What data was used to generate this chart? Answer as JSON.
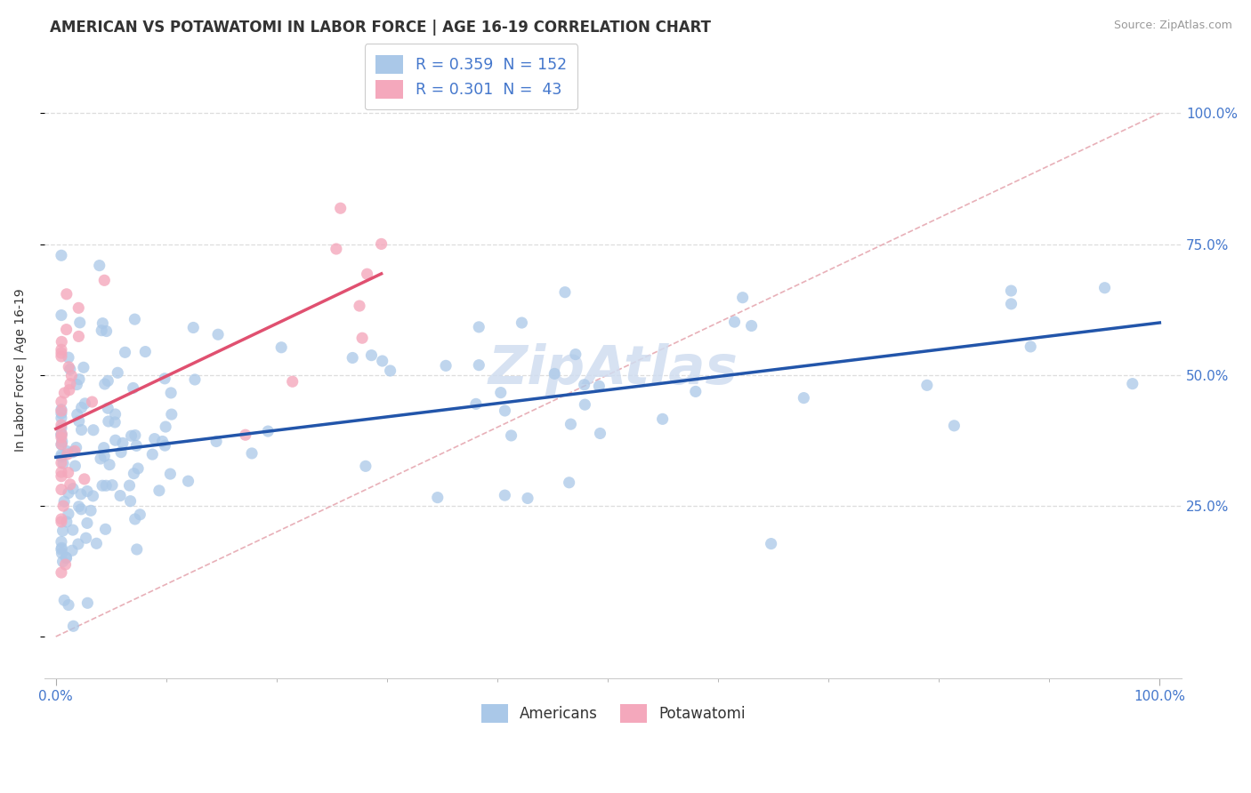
{
  "title": "AMERICAN VS POTAWATOMI IN LABOR FORCE | AGE 16-19 CORRELATION CHART",
  "source": "Source: ZipAtlas.com",
  "ylabel": "In Labor Force | Age 16-19",
  "americans_color": "#aac8e8",
  "potawatomi_color": "#f4a8bc",
  "americans_line_color": "#2255aa",
  "potawatomi_line_color": "#e05070",
  "diagonal_color": "#e8b0b8",
  "background_color": "#ffffff",
  "title_fontsize": 12,
  "axis_label_fontsize": 10,
  "tick_fontsize": 11,
  "legend_R_color": "#4477cc",
  "legend_label_color": "#333333",
  "right_tick_color": "#4477cc",
  "bottom_tick_color": "#4477cc",
  "watermark_color": "#d0ddf0",
  "grid_color": "#dddddd"
}
